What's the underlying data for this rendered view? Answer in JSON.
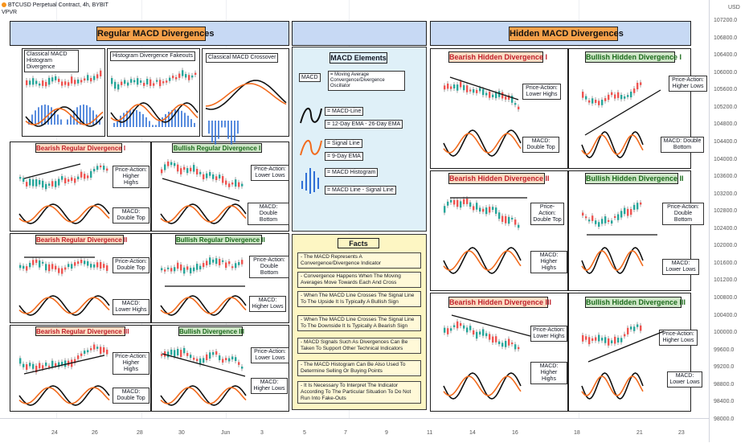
{
  "header": {
    "symbol": "BTCUSD Perpetual Contract, 4h, BYBIT",
    "sub": "VPVR"
  },
  "titles": {
    "regular": "Regular MACD Divergences",
    "hidden": "Hidden MACD Divergences"
  },
  "small_titles": {
    "classical_hist": "Classical MACD Histogram Divergence",
    "fakeouts": "Histogram Divergence Fakeouts",
    "crossover": "Classical MACD Crossover"
  },
  "regular_panels": [
    {
      "title": "Bearish Regular Divergence I",
      "pa": "Price-Action: Higher Highs",
      "macd": "MACD: Double Top"
    },
    {
      "title": "Bullish Regular Divergence I",
      "pa": "Price-Action: Lower Lows",
      "macd": "MACD: Double Bottom"
    },
    {
      "title": "Bearish Regular Divergence II",
      "pa": "Price-Action: Double Top",
      "macd": "MACD: Lower Highs"
    },
    {
      "title": "Bullish Regular Divergence II",
      "pa": "Price-Action: Double Bottom",
      "macd": "MACD: Higher Lows"
    },
    {
      "title": "Bearish Regular Divergence III",
      "pa": "Price-Action: Higher Highs",
      "macd": "MACD: Double Top"
    },
    {
      "title": "Bullish Divergence III",
      "pa": "Price-Action: Lower Lows",
      "macd": "MACD: Higher Lows"
    }
  ],
  "hidden_panels": [
    {
      "title": "Bearish Hidden Divergence I",
      "pa": "Price-Action: Lower Highs",
      "macd": "MACD: Double Top"
    },
    {
      "title": "Bullish Hidden Divergence I",
      "pa": "Price-Action: Higher Lows",
      "macd": "MACD: Double Bottom"
    },
    {
      "title": "Bearish Hidden Divergence II",
      "pa": "Price-Action: Double Top",
      "macd": "MACD: Higher Highs"
    },
    {
      "title": "Bullish Hidden Divergence II",
      "pa": "Price-Action: Double Bottom",
      "macd": "MACD: Lower Lows"
    },
    {
      "title": "Bearish Hidden Divergence III",
      "pa": "Price-Action: Lower Highs",
      "macd": "MACD: Higher Highs"
    },
    {
      "title": "Bullish Hidden Divergence III",
      "pa": "Price-Action: Higher Lows",
      "macd": "MACD: Lower Lows"
    }
  ],
  "elements": {
    "title": "MACD Elements",
    "macd": "MACD",
    "macd_def": "= Moving Average Convergence/Divergence Oscillator",
    "line": "= MACD-Line",
    "line_def": "= 12-Day EMA - 26-Day EMA",
    "signal": "= Signal Line",
    "signal_def": "= 9-Day EMA",
    "hist": "= MACD Histogram",
    "hist_def": "= MACD Line - Signal Line"
  },
  "facts": {
    "title": "Facts",
    "items": [
      "- The MACD Represents A Convergence/Divergence Indicator",
      "- Convergence Happens When The Moving Averages Move Towards Each And Cross",
      "- When The MACD Line Crosses The Signal Line To The Upside It Is Typically A Bullish Sign",
      "- When The MACD Line Crosses The Signal Line To The Downside It Is Typically A Bearish Sign",
      "- MACD Signals Such As Divergences Can Be Taken To Support Other Technical Indicators",
      "- The MACD Histogram Can Be Also Used To Determine Selling Or Buying Points",
      "- It Is Necessary To Interpret The Indicator According To The Particular Situation To Do Not Run Into Fake-Outs"
    ]
  },
  "y_axis": {
    "unit": "USD",
    "ticks": [
      "107200.0",
      "106800.0",
      "106400.0",
      "106000.0",
      "105600.0",
      "105200.0",
      "104800.0",
      "104400.0",
      "104000.0",
      "103600.0",
      "103200.0",
      "102800.0",
      "102400.0",
      "102000.0",
      "101600.0",
      "101200.0",
      "100800.0",
      "100400.0",
      "100000.0",
      "99600.0",
      "99200.0",
      "98800.0",
      "98400.0",
      "98000.0"
    ]
  },
  "x_axis": {
    "ticks": [
      "24",
      "26",
      "28",
      "30",
      "Jun",
      "3",
      "5",
      "7",
      "9",
      "11",
      "14",
      "16",
      "18",
      "21",
      "23"
    ]
  },
  "colors": {
    "blue_header": "#c7d9f4",
    "orange_title": "#f5a14a",
    "peach": "#fbdcc4",
    "green": "#cfe6c8",
    "up": "#26a69a",
    "down": "#ef5350",
    "macd_line": "#111111",
    "signal_line": "#f26b1d",
    "hist": "#2f6fd6"
  }
}
